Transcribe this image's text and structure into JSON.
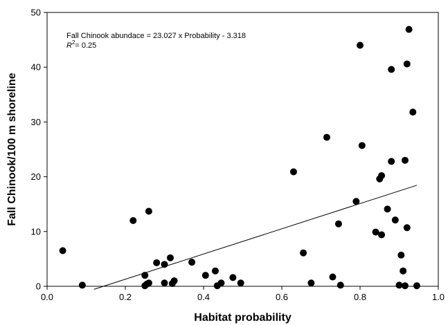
{
  "chart_data": {
    "type": "scatter",
    "title": "",
    "xlabel": "Habitat probability",
    "ylabel": "Fall Chinook/100 m shoreline",
    "xlim": [
      0.0,
      1.0
    ],
    "ylim": [
      0,
      50
    ],
    "xticks": [
      "0.0",
      "0.2",
      "0.4",
      "0.6",
      "0.8",
      "1.0"
    ],
    "yticks": [
      "0",
      "10",
      "20",
      "30",
      "40",
      "50"
    ],
    "grid": false,
    "legend": "none",
    "annotation": {
      "equation": "Fall Chinook abundace = 23.027 x Probability - 3.318",
      "r2_symbol": "R",
      "r2_superscript": "2",
      "r2_value": "= 0.25"
    },
    "regression": {
      "slope": 23.027,
      "intercept": -3.318,
      "x_range": [
        0.12,
        0.945
      ]
    },
    "points": {
      "x": [
        0.04,
        0.09,
        0.22,
        0.25,
        0.25,
        0.255,
        0.26,
        0.26,
        0.28,
        0.3,
        0.3,
        0.315,
        0.32,
        0.325,
        0.37,
        0.405,
        0.43,
        0.435,
        0.445,
        0.475,
        0.495,
        0.63,
        0.655,
        0.675,
        0.715,
        0.73,
        0.745,
        0.75,
        0.79,
        0.8,
        0.805,
        0.84,
        0.85,
        0.855,
        0.855,
        0.87,
        0.88,
        0.88,
        0.89,
        0.9,
        0.905,
        0.91,
        0.915,
        0.915,
        0.92,
        0.92,
        0.925,
        0.935,
        0.945
      ],
      "y": [
        6.5,
        0.2,
        12.0,
        2.0,
        0.1,
        0.4,
        0.6,
        13.7,
        4.3,
        4.0,
        0.6,
        5.2,
        0.5,
        1.0,
        4.4,
        2.0,
        2.8,
        0.1,
        0.6,
        1.6,
        0.6,
        20.9,
        6.1,
        0.6,
        27.2,
        1.7,
        11.4,
        0.2,
        15.5,
        44.0,
        25.7,
        9.9,
        19.6,
        20.2,
        9.4,
        14.1,
        39.6,
        22.8,
        12.1,
        0.2,
        5.7,
        2.8,
        0.1,
        23.0,
        40.6,
        10.7,
        46.9,
        31.8,
        0.1
      ]
    }
  }
}
